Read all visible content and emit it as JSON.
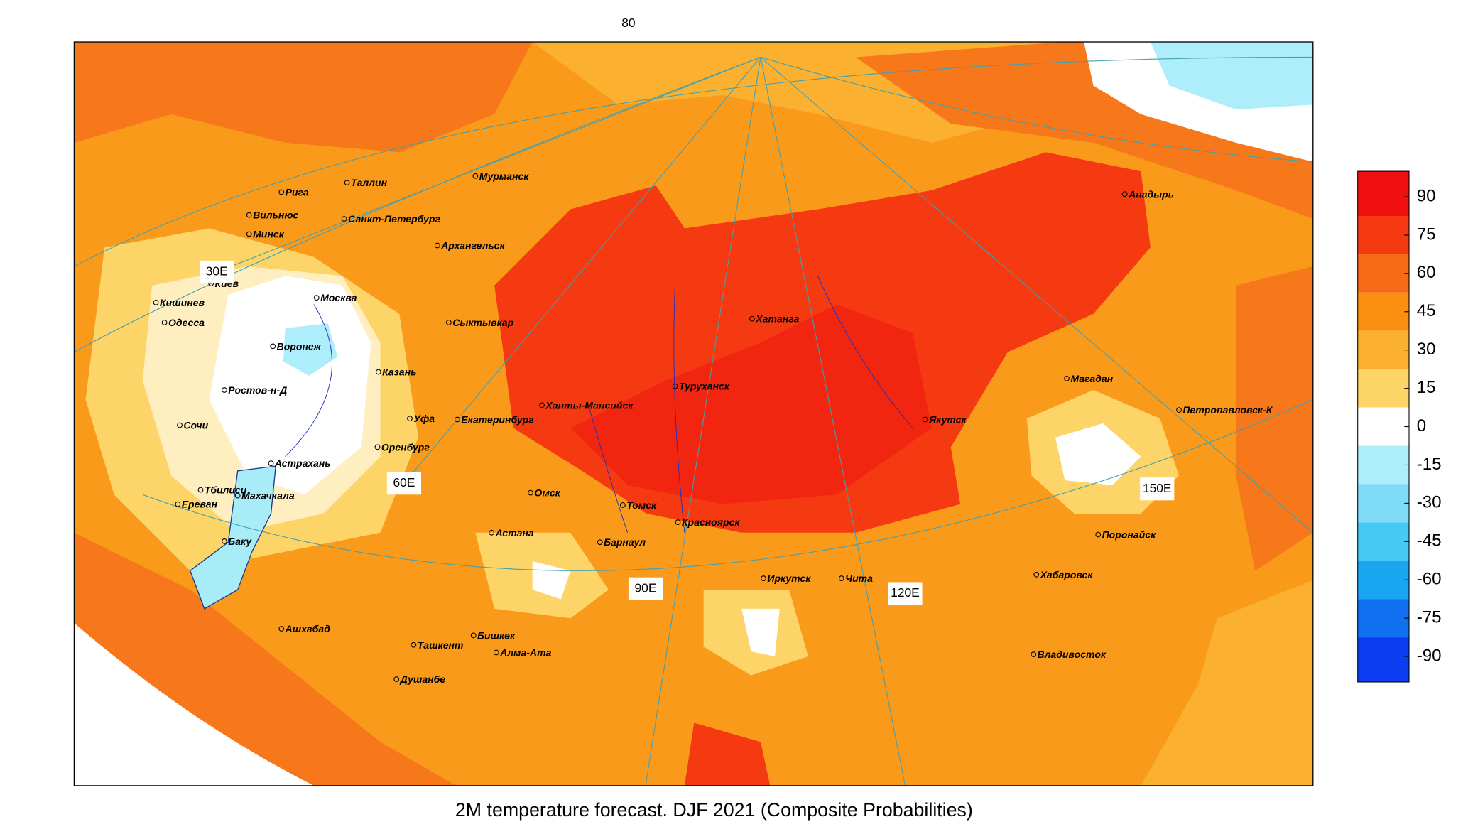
{
  "title": "2M temperature forecast. DJF 2021 (Composite Probabilities)",
  "top_label": "80",
  "longitude_labels": [
    "30E",
    "60E",
    "90E",
    "120E",
    "150E"
  ],
  "cities": [
    "Мурманск",
    "Таллин",
    "Рига",
    "Вильнюс",
    "Минск",
    "Санкт-Петербург",
    "Архангельск",
    "Киев",
    "Кишинев",
    "Одесса",
    "Москва",
    "Воронеж",
    "Сыктывкар",
    "Казань",
    "Ростов-н-Д",
    "Сочи",
    "Уфа",
    "Екатеринбург",
    "Ханты-Мансийск",
    "Туруханск",
    "Хатанга",
    "Якутск",
    "Магадан",
    "Анадырь",
    "Петропавловск-К",
    "Оренбург",
    "Астрахань",
    "Тбилиси",
    "Махачкала",
    "Ереван",
    "Баку",
    "Омск",
    "Томск",
    "Красноярск",
    "Барнаул",
    "Астана",
    "Иркутск",
    "Чита",
    "Поронайск",
    "Хабаровск",
    "Владивосток",
    "Ашхабад",
    "Бишкек",
    "Ташкент",
    "Алма-Ата",
    "Душанбе"
  ],
  "colorbar": {
    "clim": [
      -100,
      100
    ],
    "ticks": [
      90,
      75,
      60,
      45,
      30,
      15,
      0,
      -15,
      -30,
      -45,
      -60,
      -75,
      -90
    ],
    "colors": [
      "#f01010",
      "#f53a12",
      "#f76a18",
      "#fa8f10",
      "#fbb030",
      "#fdd468",
      "#ffffff",
      "#aeeefa",
      "#7fdcf8",
      "#45c9f5",
      "#1aa5f0",
      "#1070f0",
      "#0a3ef0"
    ]
  }
}
